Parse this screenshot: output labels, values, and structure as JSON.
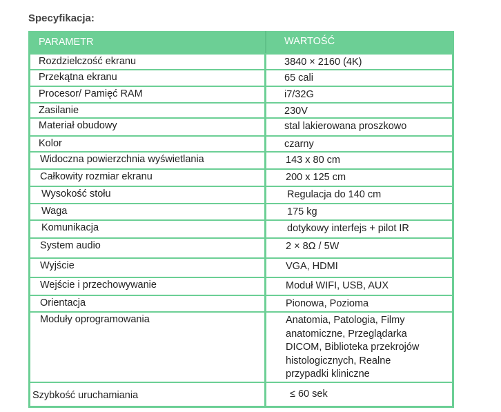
{
  "title": "Specyfikacja:",
  "header": {
    "param": "PARAMETR",
    "value": "WARTOŚĆ"
  },
  "rows": [
    {
      "param": "Rozdzielczość ekranu",
      "value": "3840 × 2160 (4K)"
    },
    {
      "param": "Przekątna ekranu",
      "value": "65 cali"
    },
    {
      "param": "Procesor/ Pamięć RAM",
      "value": "i7/32G"
    },
    {
      "param": "Zasilanie",
      "value": "230V"
    },
    {
      "param": "Materiał obudowy",
      "value": "stal lakierowana proszkowo"
    },
    {
      "param": "Kolor",
      "value": "czarny"
    },
    {
      "param": "Widoczna powierzchnia wyświetlania",
      "value": "143 x 80 cm"
    },
    {
      "param": "Całkowity rozmiar ekranu",
      "value": "200 x 125 cm"
    },
    {
      "param": "Wysokość stołu",
      "value": "Regulacja do 140 cm"
    },
    {
      "param": "Waga",
      "value": "175 kg"
    },
    {
      "param": "Komunikacja",
      "value": "dotykowy interfejs + pilot IR"
    },
    {
      "param": "System audio",
      "value": "2 × 8Ω / 5W"
    },
    {
      "param": "Wyjście",
      "value": "VGA, HDMI"
    },
    {
      "param": "Wejście i przechowywanie",
      "value": "Moduł WIFI, USB, AUX"
    },
    {
      "param": "Orientacja",
      "value": "Pionowa, Pozioma"
    },
    {
      "param": "Moduły oprogramowania",
      "value": "Anatomia, Patologia, Filmy anatomiczne, Przeglądarka DICOM, Biblioteka przekrojów histologicznych, Realne przypadki kliniczne"
    },
    {
      "param": "Szybkość uruchamiania",
      "value": "≤ 60 sek"
    }
  ],
  "colors": {
    "accent": "#6ccf95"
  }
}
